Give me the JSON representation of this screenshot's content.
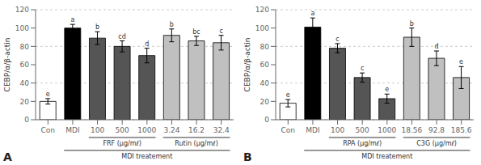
{
  "chart_data": [
    {
      "type": "bar",
      "panel_label": "A",
      "categories": [
        "Con",
        "MDI",
        "100",
        "500",
        "1000",
        "3.24",
        "16.2",
        "32.4"
      ],
      "values": [
        20,
        100,
        89,
        80,
        70,
        92,
        86,
        84
      ],
      "errors": [
        3,
        4,
        7,
        6,
        8,
        7,
        5,
        8
      ],
      "annotations": [
        "e",
        "a",
        "b",
        "cd",
        "d",
        "b",
        "bc",
        "c"
      ],
      "colors": [
        "#ffffff",
        "#000000",
        "#555555",
        "#555555",
        "#555555",
        "#c0c0c0",
        "#c0c0c0",
        "#c0c0c0"
      ],
      "ylabel": "CEBP/α/β-actin",
      "ylim": [
        0,
        120
      ],
      "yticks": [
        0,
        20,
        40,
        60,
        80,
        100,
        120
      ],
      "grid": true,
      "groups": [
        {
          "label": "FRF (μg/mℓ)",
          "categories": [
            "100",
            "500",
            "1000"
          ]
        },
        {
          "label": "Rutin (μg/mℓ)",
          "categories": [
            "3.24",
            "16.2",
            "32.4"
          ]
        }
      ],
      "outer_group": {
        "label": "MDI treatement",
        "categories": [
          "MDI",
          "100",
          "500",
          "1000",
          "3.24",
          "16.2",
          "32.4"
        ]
      }
    },
    {
      "type": "bar",
      "panel_label": "B",
      "categories": [
        "Con",
        "MDI",
        "100",
        "500",
        "1000",
        "18.56",
        "92.8",
        "185.6"
      ],
      "values": [
        18,
        101,
        78,
        46,
        23,
        90,
        67,
        46
      ],
      "errors": [
        4,
        10,
        5,
        5,
        5,
        10,
        8,
        12
      ],
      "annotations": [
        "e",
        "a",
        "c",
        "c",
        "e",
        "b",
        "d",
        "e"
      ],
      "colors": [
        "#ffffff",
        "#000000",
        "#555555",
        "#555555",
        "#555555",
        "#c0c0c0",
        "#c0c0c0",
        "#c0c0c0"
      ],
      "ylabel": "CEBP/α/β-actin",
      "ylim": [
        0,
        120
      ],
      "yticks": [
        0,
        20,
        40,
        60,
        80,
        100,
        120
      ],
      "grid": true,
      "groups": [
        {
          "label": "RPA (μg/mℓ)",
          "categories": [
            "100",
            "500",
            "1000"
          ]
        },
        {
          "label": "C3G (μg/mℓ)",
          "categories": [
            "18.56",
            "92.8",
            "185.6"
          ]
        }
      ],
      "outer_group": {
        "label": "MDI treatement",
        "categories": [
          "MDI",
          "100",
          "500",
          "1000",
          "18.56",
          "92.8",
          "185.6"
        ]
      }
    }
  ]
}
